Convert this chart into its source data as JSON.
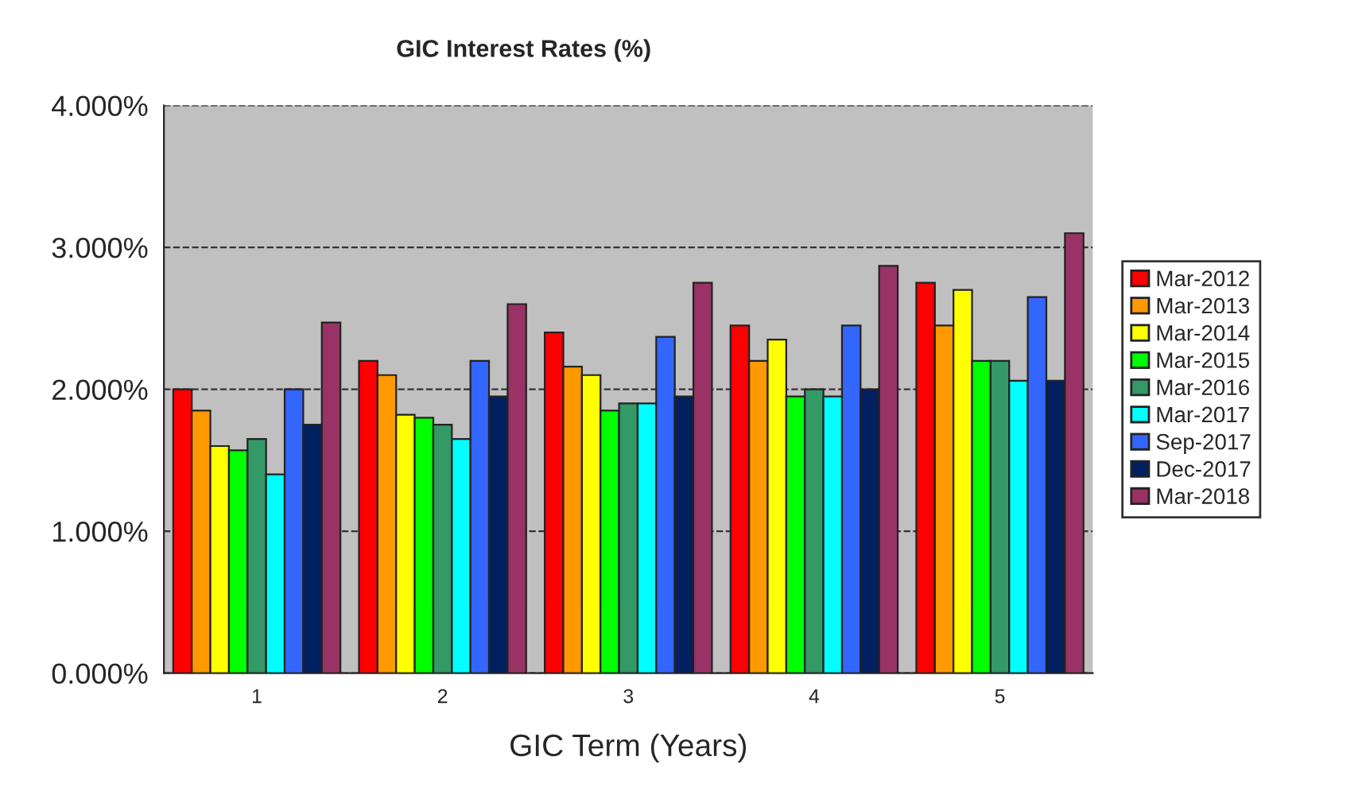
{
  "chart_data": {
    "type": "bar",
    "title": "GIC Interest Rates (%)",
    "xlabel": "GIC Term (Years)",
    "categories": [
      "1",
      "2",
      "3",
      "4",
      "5"
    ],
    "series": [
      {
        "name": "Mar-2012",
        "color": "#ff0000",
        "values": [
          2.0,
          2.2,
          2.4,
          2.45,
          2.75
        ]
      },
      {
        "name": "Mar-2013",
        "color": "#ff9900",
        "values": [
          1.85,
          2.1,
          2.16,
          2.2,
          2.45
        ]
      },
      {
        "name": "Mar-2014",
        "color": "#ffff00",
        "values": [
          1.6,
          1.82,
          2.1,
          2.35,
          2.7
        ]
      },
      {
        "name": "Mar-2015",
        "color": "#00ff00",
        "values": [
          1.57,
          1.8,
          1.85,
          1.95,
          2.2
        ]
      },
      {
        "name": "Mar-2016",
        "color": "#339966",
        "values": [
          1.65,
          1.75,
          1.9,
          2.0,
          2.2
        ]
      },
      {
        "name": "Mar-2017",
        "color": "#00ffff",
        "values": [
          1.4,
          1.65,
          1.9,
          1.95,
          2.06
        ]
      },
      {
        "name": "Sep-2017",
        "color": "#3366ff",
        "values": [
          2.0,
          2.2,
          2.37,
          2.45,
          2.65
        ]
      },
      {
        "name": "Dec-2017",
        "color": "#002060",
        "values": [
          1.75,
          1.95,
          1.95,
          2.0,
          2.06
        ]
      },
      {
        "name": "Mar-2018",
        "color": "#993366",
        "values": [
          2.47,
          2.6,
          2.75,
          2.87,
          3.1
        ]
      }
    ],
    "ylim": [
      0,
      4
    ],
    "yticks": [
      {
        "value": 0,
        "label": "0.000%"
      },
      {
        "value": 1,
        "label": "1.000%"
      },
      {
        "value": 2,
        "label": "2.000%"
      },
      {
        "value": 3,
        "label": "3.000%"
      },
      {
        "value": 4,
        "label": "4.000%"
      }
    ],
    "grid": "y",
    "legend": "right"
  }
}
